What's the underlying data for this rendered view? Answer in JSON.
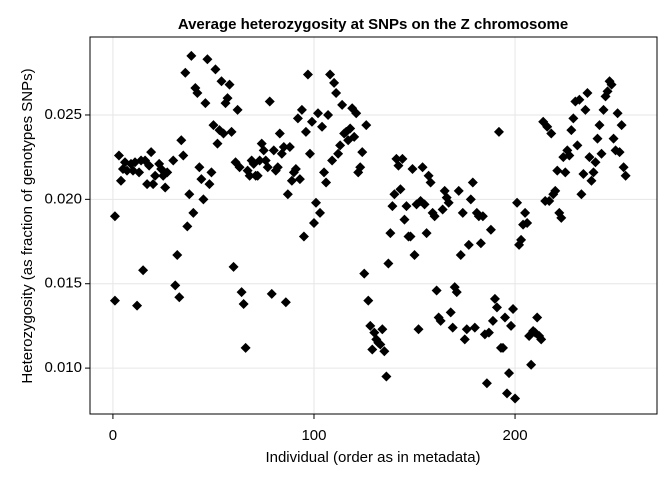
{
  "chart_data": {
    "type": "scatter",
    "title": "Average heterozygosity at SNPs on the Z chromosome",
    "x_label": "Individual (order as in metadata)",
    "y_label": "Heterozygosity (as fraction of genotypes SNPs)",
    "color": "#000000",
    "marker": "diamond",
    "grid": true,
    "xlim": [
      -11.4,
      270.6
    ],
    "ylim": [
      0.00728,
      0.02962
    ],
    "xticks": [
      0,
      100,
      200
    ],
    "yticks": [
      {
        "value": 0.01,
        "label": "0.010"
      },
      {
        "value": 0.015,
        "label": "0.015"
      },
      {
        "value": 0.02,
        "label": "0.020"
      },
      {
        "value": 0.025,
        "label": "0.025"
      }
    ],
    "x": [
      1,
      1,
      3,
      4,
      5,
      6,
      7,
      9,
      10,
      11,
      12,
      13,
      14,
      15,
      16,
      17,
      18,
      19,
      20,
      21,
      23,
      24,
      25,
      26,
      27,
      30,
      31,
      32,
      33,
      34,
      35,
      36,
      37,
      38,
      39,
      40,
      41,
      42,
      43,
      44,
      45,
      46,
      47,
      48,
      49,
      50,
      51,
      52,
      53,
      54,
      55,
      56,
      57,
      58,
      59,
      60,
      61,
      62,
      63,
      64,
      65,
      66,
      67,
      68,
      69,
      70,
      71,
      72,
      73,
      74,
      75,
      76,
      77,
      78,
      79,
      80,
      81,
      82,
      83,
      84,
      85,
      86,
      87,
      88,
      89,
      90,
      91,
      92,
      93,
      94,
      95,
      96,
      97,
      98,
      99,
      100,
      101,
      102,
      103,
      104,
      105,
      106,
      107,
      108,
      109,
      110,
      111,
      112,
      113,
      114,
      115,
      116,
      117,
      118,
      119,
      120,
      121,
      122,
      123,
      124,
      125,
      126,
      127,
      128,
      129,
      130,
      131,
      132,
      133,
      134,
      135,
      136,
      137,
      138,
      139,
      140,
      141,
      142,
      143,
      144,
      145,
      146,
      147,
      148,
      149,
      150,
      151,
      152,
      153,
      154,
      155,
      156,
      157,
      158,
      159,
      160,
      161,
      162,
      163,
      164,
      165,
      166,
      167,
      168,
      169,
      170,
      171,
      172,
      173,
      174,
      175,
      176,
      177,
      178,
      179,
      180,
      181,
      182,
      183,
      184,
      185,
      186,
      187,
      188,
      189,
      190,
      191,
      192,
      193,
      194,
      195,
      196,
      197,
      198,
      199,
      200,
      201,
      202,
      203,
      204,
      205,
      206,
      207,
      208,
      209,
      210,
      211,
      212,
      213,
      214,
      215,
      216,
      217,
      218,
      219,
      220,
      221,
      222,
      223,
      224,
      225,
      226,
      227,
      228,
      229,
      230,
      231,
      232,
      233,
      234,
      235,
      236,
      237,
      238,
      239,
      240,
      241,
      242,
      243,
      244,
      245,
      246,
      247,
      248,
      249,
      250,
      251,
      252,
      253,
      254,
      255
    ],
    "values": [
      0.019,
      0.014,
      0.0226,
      0.0211,
      0.0218,
      0.0222,
      0.0217,
      0.0221,
      0.0217,
      0.0222,
      0.0137,
      0.0216,
      0.0223,
      0.0158,
      0.0223,
      0.0209,
      0.022,
      0.0228,
      0.0209,
      0.0214,
      0.0221,
      0.0218,
      0.0214,
      0.0207,
      0.0216,
      0.0223,
      0.0149,
      0.0167,
      0.0142,
      0.0235,
      0.0226,
      0.0275,
      0.0184,
      0.0203,
      0.0285,
      0.0192,
      0.0266,
      0.0263,
      0.0219,
      0.0212,
      0.02,
      0.0257,
      0.0283,
      0.0209,
      0.0216,
      0.0244,
      0.0277,
      0.0233,
      0.0241,
      0.027,
      0.0239,
      0.0257,
      0.026,
      0.0268,
      0.024,
      0.016,
      0.0222,
      0.0253,
      0.0219,
      0.0145,
      0.0138,
      0.0112,
      0.0217,
      0.0214,
      0.0223,
      0.0221,
      0.0214,
      0.0214,
      0.0223,
      0.0233,
      0.0229,
      0.0223,
      0.0219,
      0.0258,
      0.0144,
      0.0229,
      0.0217,
      0.0219,
      0.0239,
      0.0227,
      0.0231,
      0.0139,
      0.0203,
      0.0231,
      0.0211,
      0.0216,
      0.0218,
      0.0248,
      0.0212,
      0.0253,
      0.0178,
      0.024,
      0.0274,
      0.0227,
      0.0246,
      0.0186,
      0.0198,
      0.0251,
      0.0192,
      0.0243,
      0.0216,
      0.021,
      0.025,
      0.0274,
      0.0223,
      0.0269,
      0.0263,
      0.0227,
      0.0232,
      0.0256,
      0.0239,
      0.024,
      0.0235,
      0.0242,
      0.0254,
      0.0237,
      0.0251,
      0.0216,
      0.0219,
      0.0228,
      0.0156,
      0.0244,
      0.014,
      0.0125,
      0.0111,
      0.0121,
      0.0117,
      0.0115,
      0.0114,
      0.0123,
      0.011,
      0.0095,
      0.0162,
      0.018,
      0.0196,
      0.0203,
      0.0224,
      0.022,
      0.0206,
      0.0224,
      0.0188,
      0.0196,
      0.0178,
      0.0178,
      0.0218,
      0.0167,
      0.0197,
      0.0123,
      0.0199,
      0.0219,
      0.0197,
      0.018,
      0.0214,
      0.021,
      0.0192,
      0.019,
      0.0146,
      0.013,
      0.0128,
      0.0194,
      0.0205,
      0.0201,
      0.0198,
      0.0133,
      0.0124,
      0.0148,
      0.0145,
      0.0205,
      0.0167,
      0.0192,
      0.0117,
      0.0123,
      0.0173,
      0.02,
      0.021,
      0.0124,
      0.0192,
      0.019,
      0.0174,
      0.019,
      0.012,
      0.0091,
      0.0121,
      0.0182,
      0.0128,
      0.0141,
      0.0136,
      0.024,
      0.0112,
      0.0112,
      0.013,
      0.0085,
      0.0097,
      0.0125,
      0.0135,
      0.0082,
      0.0198,
      0.0173,
      0.0176,
      0.0185,
      0.0192,
      0.0186,
      0.0119,
      0.0102,
      0.0122,
      0.0121,
      0.013,
      0.0119,
      0.0117,
      0.0246,
      0.0199,
      0.0243,
      0.0199,
      0.0239,
      0.0203,
      0.0205,
      0.0217,
      0.0192,
      0.0189,
      0.0225,
      0.0216,
      0.0229,
      0.0226,
      0.0241,
      0.0248,
      0.0258,
      0.0232,
      0.0259,
      0.0203,
      0.0215,
      0.0253,
      0.0263,
      0.0225,
      0.0211,
      0.0216,
      0.0222,
      0.0236,
      0.0244,
      0.0227,
      0.0253,
      0.0261,
      0.0264,
      0.027,
      0.0268,
      0.0236,
      0.0229,
      0.0251,
      0.0228,
      0.0244,
      0.0219,
      0.0214
    ]
  }
}
